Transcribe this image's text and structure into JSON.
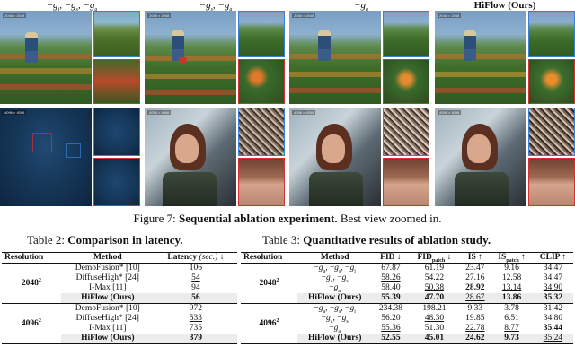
{
  "figure": {
    "column_headers": [
      "−g_i, −g_s, −g_a",
      "−g_s, −g_a",
      "−g_a",
      "HiFlow (Ours)"
    ],
    "resolution_tags": [
      "2048 × 2048",
      "4096 × 4096"
    ],
    "caption_label": "Figure 7:",
    "caption_title": "Sequential ablation experiment.",
    "caption_rest": " Best view zoomed in."
  },
  "table2": {
    "label": "Table 2:",
    "title": "Comparison in latency.",
    "headers": {
      "resolution": "Resolution",
      "method": "Method",
      "latency": "Latency (sec.) ↓",
      "latency_main": "Latency",
      "latency_unit": "(sec.)",
      "latency_arrow": "↓"
    },
    "groups": [
      {
        "resolution": "2048",
        "rows": [
          {
            "method": "DemoFusion* [10]",
            "latency": "106"
          },
          {
            "method": "DiffuseHigh* [24]",
            "latency": "54"
          },
          {
            "method": "I-Max [11]",
            "latency": "94"
          },
          {
            "method": "HiFlow (Ours)",
            "latency": "56"
          }
        ]
      },
      {
        "resolution": "4096",
        "rows": [
          {
            "method": "DemoFusion* [10]",
            "latency": "972"
          },
          {
            "method": "DiffuseHigh* [24]",
            "latency": "533"
          },
          {
            "method": "I-Max [11]",
            "latency": "735"
          },
          {
            "method": "HiFlow (Ours)",
            "latency": "379"
          }
        ]
      }
    ]
  },
  "table3": {
    "label": "Table 3:",
    "title": "Quantitative results of ablation study.",
    "headers": {
      "resolution": "Resolution",
      "method": "Method",
      "fid": "FID",
      "fid_patch": "FID",
      "fid_patch_sub": "patch",
      "is": "IS",
      "is_patch": "IS",
      "is_patch_sub": "patch",
      "clip": "CLIP",
      "down": "↓",
      "up": "↑"
    },
    "groups": [
      {
        "resolution": "2048",
        "rows": [
          {
            "method": "−g_a, −g_s, −g_i",
            "fid": "67.87",
            "fid_patch": "61.19",
            "is": "23.47",
            "is_patch": "9.16",
            "clip": "34.47"
          },
          {
            "method": "−g_a, −g_s",
            "fid": "58.26",
            "fid_patch": "54.22",
            "is": "27.16",
            "is_patch": "12.58",
            "clip": "34.47"
          },
          {
            "method": "−g_a",
            "fid": "58.40",
            "fid_patch": "50.38",
            "is": "28.92",
            "is_patch": "13.14",
            "clip": "34.90"
          },
          {
            "method": "HiFlow (Ours)",
            "fid": "55.39",
            "fid_patch": "47.70",
            "is": "28.67",
            "is_patch": "13.86",
            "clip": "35.32"
          }
        ]
      },
      {
        "resolution": "4096",
        "rows": [
          {
            "method": "−g_a, −g_s, −g_i",
            "fid": "234.38",
            "fid_patch": "198.21",
            "is": "9.33",
            "is_patch": "3.78",
            "clip": "31.42"
          },
          {
            "method": "−g_a, −g_s",
            "fid": "56.20",
            "fid_patch": "48.30",
            "is": "19.85",
            "is_patch": "6.51",
            "clip": "34.80"
          },
          {
            "method": "−g_a",
            "fid": "55.36",
            "fid_patch": "51.30",
            "is": "22.78",
            "is_patch": "8.77",
            "clip": "35.44"
          },
          {
            "method": "HiFlow (Ours)",
            "fid": "52.55",
            "fid_patch": "45.01",
            "is": "24.62",
            "is_patch": "9.73",
            "clip": "35.24"
          }
        ]
      }
    ]
  }
}
